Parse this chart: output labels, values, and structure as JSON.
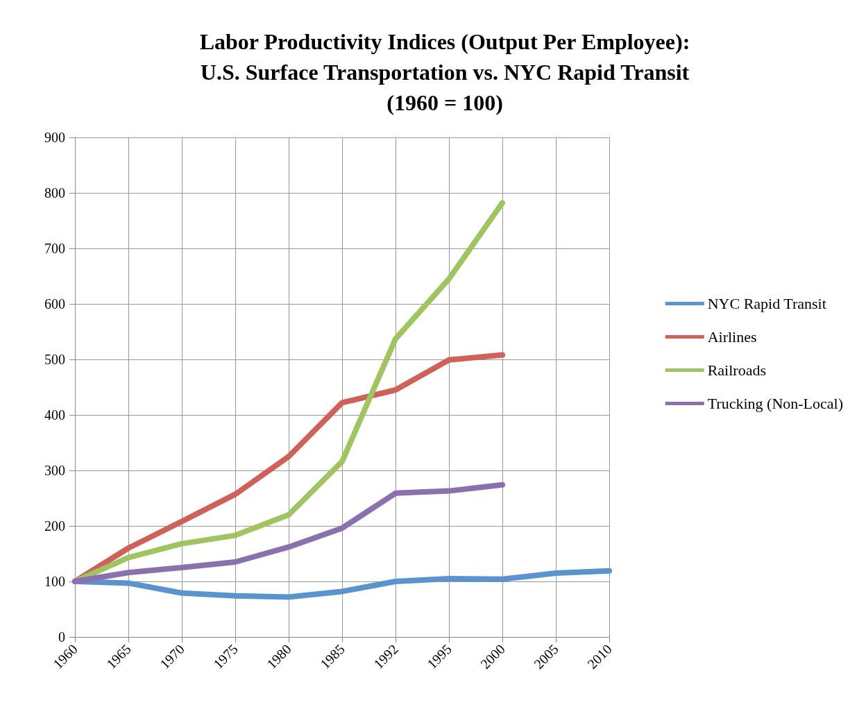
{
  "chart_data": {
    "type": "line",
    "title": "Labor Productivity Indices (Output Per Employee):\nU.S. Surface Transportation vs. NYC Rapid Transit\n(1960 = 100)",
    "categories": [
      "1960",
      "1965",
      "1970",
      "1975",
      "1980",
      "1985",
      "1992",
      "1995",
      "2000",
      "2005",
      "2010"
    ],
    "series": [
      {
        "name": "NYC Rapid Transit",
        "color": "#5b93cf",
        "values": [
          100,
          97,
          79,
          74,
          72,
          82,
          100,
          105,
          104,
          115,
          119
        ]
      },
      {
        "name": "Airlines",
        "color": "#d0605a",
        "values": [
          100,
          160,
          208,
          257,
          325,
          422,
          445,
          499,
          508,
          null,
          null
        ]
      },
      {
        "name": "Railroads",
        "color": "#a0c460",
        "values": [
          100,
          143,
          168,
          183,
          220,
          316,
          537,
          645,
          782,
          null,
          null
        ]
      },
      {
        "name": "Trucking (Non-Local)",
        "color": "#8a70ae",
        "values": [
          100,
          116,
          125,
          135,
          162,
          196,
          259,
          263,
          274,
          null,
          null
        ]
      }
    ],
    "ylim": [
      0,
      900
    ],
    "yticks": [
      0,
      100,
      200,
      300,
      400,
      500,
      600,
      700,
      800,
      900
    ],
    "grid": true,
    "legend": "right",
    "marker": "none",
    "line_style": "solid"
  }
}
